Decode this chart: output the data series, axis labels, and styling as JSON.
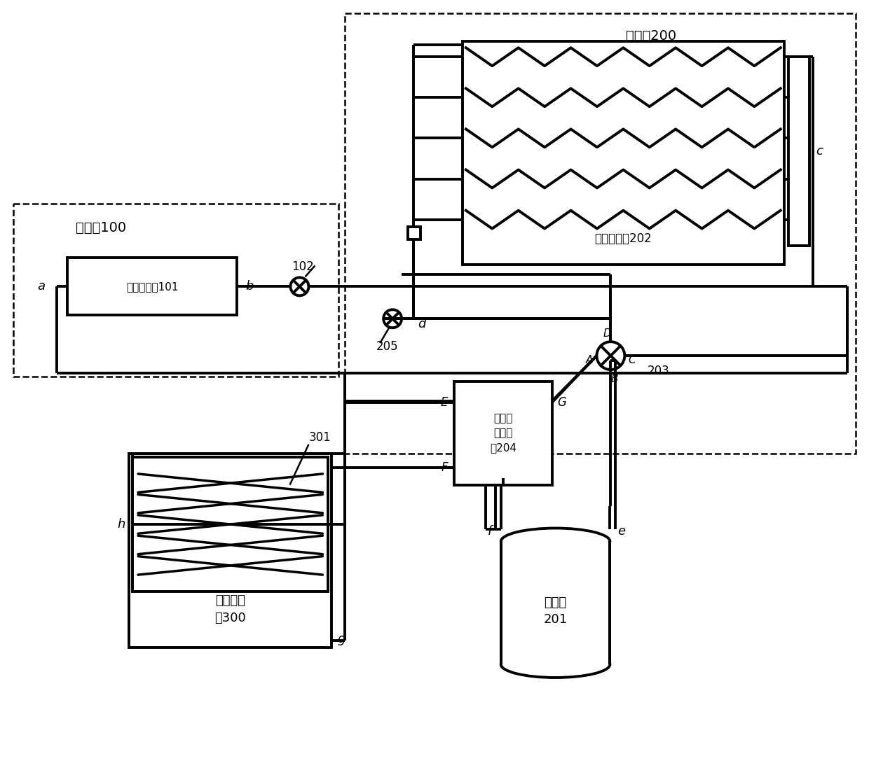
{
  "fig_width": 12.4,
  "fig_height": 11.2,
  "dpi": 100,
  "labels": {
    "outdoor_unit": "室外机200",
    "outdoor_hx": "室外换热器202",
    "indoor_unit": "室内机100",
    "indoor_hx": "室内换热器101",
    "compressor": "压缩机\n201",
    "hot_water": "热水发生\n器300",
    "heating_switch": "制热水\n切换结\n构204",
    "v102": "102",
    "v205": "205",
    "v203": "203",
    "coil301": "301"
  },
  "lw": 2.8,
  "lwd": 1.8
}
